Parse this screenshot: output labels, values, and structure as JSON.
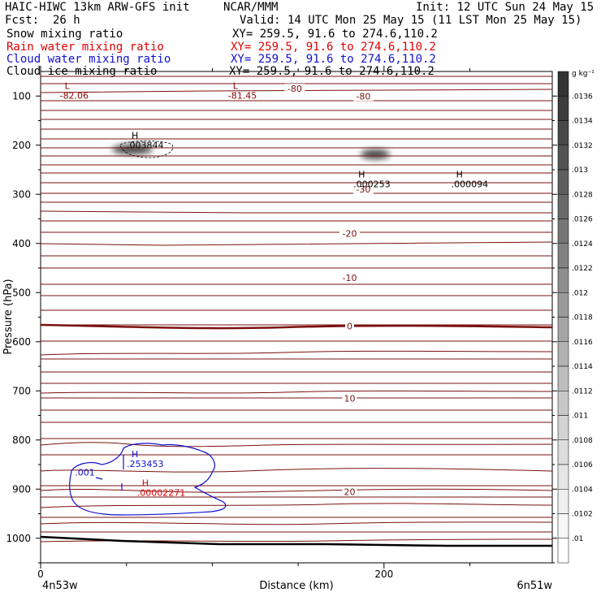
{
  "header": {
    "title_left": "HAIC-HIWC 13km ARW-GFS init",
    "center": "NCAR/MMM",
    "init": "Init: 12 UTC Sun 24 May 15",
    "fcst_label": "Fcst:",
    "fcst_value": "26 h",
    "valid": "Valid: 14 UTC Mon 25 May 15 (11 LST Mon 25 May 15)",
    "fields": [
      {
        "name": "Snow mixing ratio",
        "xy": "XY= 259.5, 91.6 to 274.6,110.2",
        "color": "#000000"
      },
      {
        "name": "Rain water mixing ratio",
        "xy": "XY= 259.5, 91.6 to 274.6,110.2",
        "color": "#e00000"
      },
      {
        "name": "Cloud water mixing ratio",
        "xy": "XY= 259.5, 91.6 to 274.6,110.2",
        "color": "#1010d0"
      },
      {
        "name": "Cloud ice mixing ratio",
        "xy": "XY= 259.5, 91.6 to 274.6,110.2",
        "color": "#000000"
      }
    ]
  },
  "chart_data": {
    "type": "contour",
    "xlabel": "Distance (km)",
    "ylabel": "Pressure (hPa)",
    "x_ticks": [
      0,
      200
    ],
    "xlim": [
      0,
      298
    ],
    "x_end_labels": {
      "left": "4n53w",
      "right": "6n51w"
    },
    "y_ticks": [
      100,
      200,
      300,
      400,
      500,
      600,
      700,
      800,
      900,
      1000
    ],
    "ylim": [
      1050,
      50
    ],
    "colorbar": {
      "unit": "g kg⁻¹",
      "ticks": [
        ".0136",
        ".0134",
        ".0132",
        ".013",
        ".0128",
        ".0126",
        ".0124",
        ".0122",
        ".012",
        ".0118",
        ".0116",
        ".0114",
        ".0112",
        ".011",
        ".0108",
        ".0106",
        ".0104",
        ".0102",
        ".01"
      ],
      "colors": [
        "#333333",
        "#3d3d3d",
        "#484848",
        "#535353",
        "#5e5e5e",
        "#6a6a6a",
        "#767676",
        "#828282",
        "#8e8e8e",
        "#9a9a9a",
        "#a6a6a6",
        "#b2b2b2",
        "#bdbdbd",
        "#c8c8c8",
        "#d3d3d3",
        "#dddddd",
        "#e6e6e6",
        "#efefef",
        "#f7f7f7",
        "#ffffff"
      ]
    },
    "temperature_contour_labels": [
      {
        "text": "-80",
        "x": 148,
        "p": 85
      },
      {
        "text": "-80",
        "x": 188,
        "p": 100
      },
      {
        "text": "-30",
        "x": 188,
        "p": 290
      },
      {
        "text": "-20",
        "x": 180,
        "p": 380
      },
      {
        "text": "-10",
        "x": 180,
        "p": 470
      },
      {
        "text": "0",
        "x": 180,
        "p": 568
      },
      {
        "text": "10",
        "x": 180,
        "p": 715
      },
      {
        "text": "20",
        "x": 180,
        "p": 905
      }
    ],
    "extrema_labels": [
      {
        "symbol": "L",
        "value": "-82.06",
        "x": 14,
        "p": 102,
        "color": "#8b0000"
      },
      {
        "symbol": "L",
        "value": "-81.45",
        "x": 112,
        "p": 102,
        "color": "#8b0000"
      },
      {
        "symbol": "H",
        "value": ".003844",
        "x": 53,
        "p": 203,
        "color": "#000000"
      },
      {
        "symbol": "H",
        "value": ".000253",
        "x": 185,
        "p": 282,
        "color": "#000000"
      },
      {
        "symbol": "H",
        "value": ".000094",
        "x": 242,
        "p": 282,
        "color": "#000000"
      },
      {
        "symbol": "H",
        "value": ".253453",
        "x": 53,
        "p": 852,
        "color": "#1010d0"
      },
      {
        "symbol": "H",
        "value": ".00002271",
        "x": 59,
        "p": 910,
        "color": "#e00000"
      }
    ],
    "cloud_water_contour_label": {
      "text": ".001",
      "x": 20,
      "p": 866
    }
  }
}
